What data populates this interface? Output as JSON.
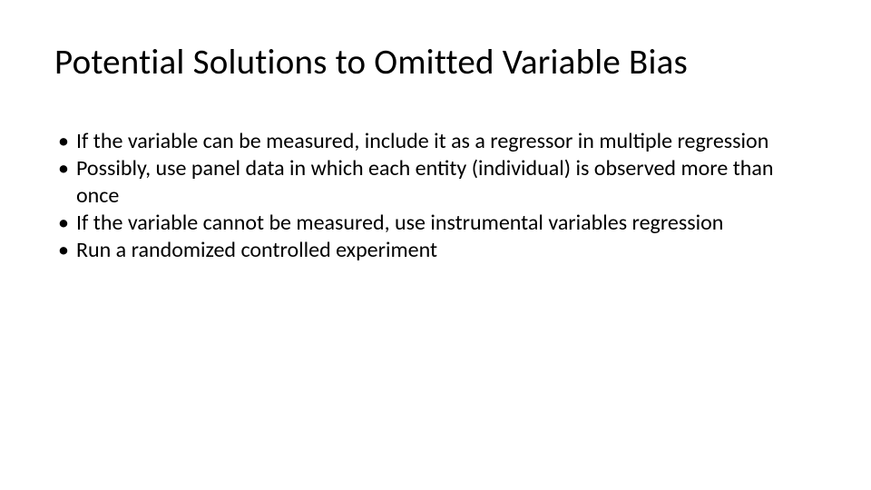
{
  "slide": {
    "title": "Potential Solutions to Omitted Variable Bias",
    "bullets": [
      "If the variable can be measured, include it as a regressor in multiple regression",
      "Possibly, use panel data in which each entity (individual) is observed more than once",
      "If the variable cannot be measured, use instrumental variables regression",
      "Run a randomized controlled experiment"
    ],
    "background_color": "#ffffff",
    "text_color": "#000000",
    "title_fontsize": 39,
    "body_fontsize": 24
  }
}
